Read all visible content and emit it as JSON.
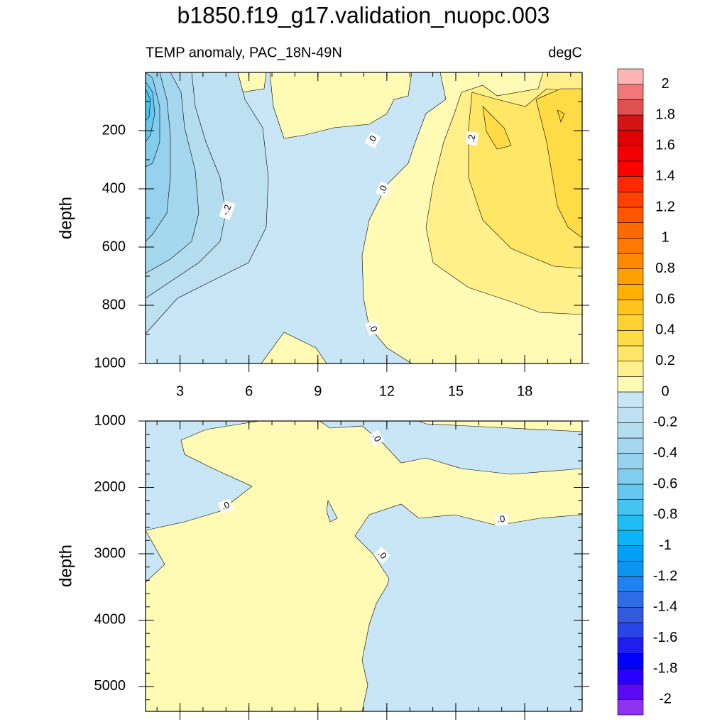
{
  "chart_data": [
    {
      "type": "contour",
      "title": "b1850.f19_g17.validation_nuopc.003",
      "subtitle": "TEMP anomaly, PAC_18N-49N",
      "units": "degC",
      "ylabel": "depth",
      "xlim": [
        1.5,
        20.5
      ],
      "xticks": [
        3,
        6,
        9,
        12,
        15,
        18
      ],
      "ylim": [
        0,
        1000
      ],
      "yticks": [
        200,
        400,
        600,
        800,
        1000
      ],
      "reverse_y": true,
      "contour_labels": [
        {
          "value": 0,
          "label": ".0"
        },
        {
          "value": -0.2,
          "label": "-.2"
        },
        {
          "value": 0,
          "label": ".0"
        },
        {
          "value": 0,
          "label": ".0"
        },
        {
          "value": 0.2,
          "label": ".2"
        }
      ],
      "colorbar": {
        "levels": [
          -2,
          -1.9,
          -1.8,
          -1.7,
          -1.6,
          -1.5,
          -1.4,
          -1.3,
          -1.2,
          -1.1,
          -1,
          -0.9,
          -0.8,
          -0.7,
          -0.6,
          -0.5,
          -0.4,
          -0.3,
          -0.2,
          -0.1,
          0,
          0.1,
          0.2,
          0.3,
          0.4,
          0.5,
          0.6,
          0.7,
          0.8,
          0.9,
          1,
          1.1,
          1.2,
          1.3,
          1.4,
          1.5,
          1.6,
          1.7,
          1.8,
          1.9,
          2
        ],
        "colors": [
          "#8c32f0",
          "#5a0af5",
          "#2800ff",
          "#0000ff",
          "#1e1ef0",
          "#2846e6",
          "#325adc",
          "#2d6ee6",
          "#1e82f0",
          "#0a96f0",
          "#00a0f5",
          "#0ab4f5",
          "#1ebef5",
          "#46c3f0",
          "#64c8f0",
          "#82cdee",
          "#96d2ee",
          "#a5d7ef",
          "#b4ddf0",
          "#bee1f2",
          "#c8e6f5",
          "#fffab4",
          "#fff08c",
          "#ffe664",
          "#ffdc46",
          "#ffd232",
          "#ffc31e",
          "#ffb000",
          "#ffa000",
          "#ff8a00",
          "#ff7800",
          "#ff6a00",
          "#ff5500",
          "#ff4000",
          "#ff2800",
          "#ff0000",
          "#f00000",
          "#e00000",
          "#d21414",
          "#e05050",
          "#f07878",
          "#ffb4b4"
        ]
      }
    },
    {
      "type": "contour",
      "ylabel": "depth",
      "xlim": [
        1.5,
        20.5
      ],
      "xticks": [
        3,
        6,
        9,
        12,
        15,
        18
      ],
      "ylim": [
        1000,
        5375
      ],
      "yticks": [
        1000,
        2000,
        3000,
        4000,
        5000
      ],
      "reverse_y": true,
      "contour_labels": [
        {
          "value": 0,
          "label": ".0"
        },
        {
          "value": 0,
          "label": ".0"
        },
        {
          "value": 0,
          "label": ".0"
        },
        {
          "value": 0,
          "label": ".0"
        }
      ]
    }
  ]
}
